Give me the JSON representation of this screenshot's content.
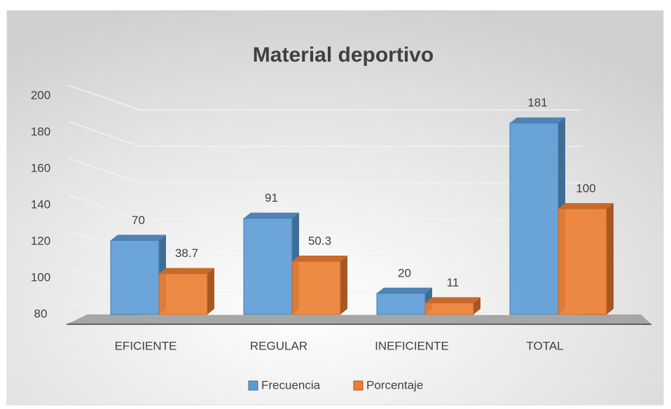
{
  "chart_data": {
    "type": "bar",
    "title": "Material deportivo",
    "categories": [
      "EFICIENTE",
      "REGULAR",
      "INEFICIENTE",
      "TOTAL"
    ],
    "series": [
      {
        "name": "Frecuencia",
        "color": "#5b9bd5",
        "values": [
          70,
          91,
          20,
          181
        ]
      },
      {
        "name": "Porcentaje",
        "color": "#ed7d31",
        "values": [
          38.7,
          50.3,
          11,
          100
        ]
      }
    ],
    "ylim": [
      0,
      200
    ],
    "yticks": [
      80,
      100,
      120,
      140,
      160,
      180,
      200
    ],
    "grid": true,
    "legend": "bottom"
  }
}
